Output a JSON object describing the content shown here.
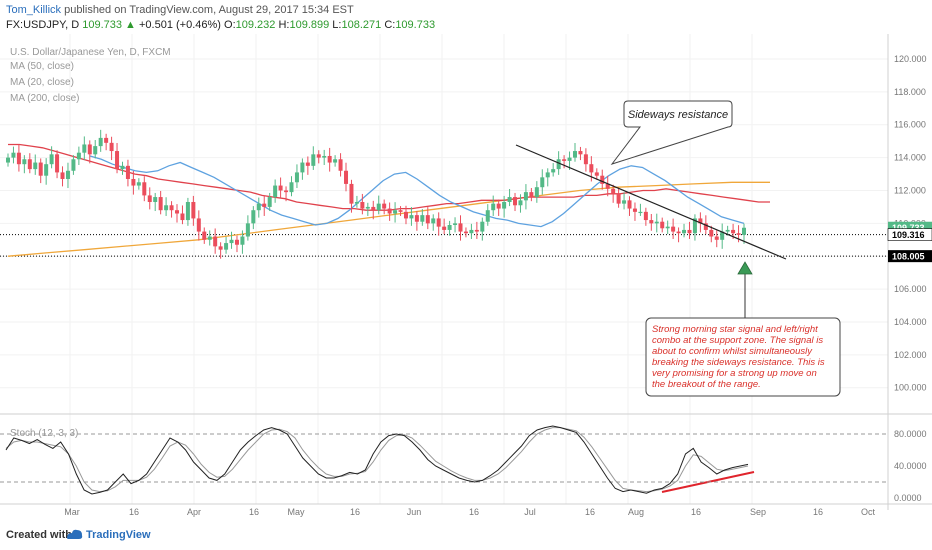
{
  "header": {
    "author": "Tom_Killick",
    "published": "published on TradingView.com, August 29, 2017 15:34 EST",
    "symbol": "FX:USDJPY, D",
    "last": "109.733",
    "change": "+0.501 (+0.46%)",
    "o_label": "O:",
    "o_value": "109.232",
    "h_label": "H:",
    "h_value": "109.899",
    "l_label": "L:",
    "l_value": "108.271",
    "c_label": "C:",
    "c_value": "109.733"
  },
  "legend": {
    "title": "U.S. Dollar/Japanese Yen, D, FXCM",
    "ma50": "MA (50, close)",
    "ma20": "MA (20, close)",
    "ma200": "MA (200, close)"
  },
  "annotations": {
    "resistance_label": "Sideways resistance",
    "note": [
      "Strong morning star signal and left/right",
      "combo at the support zone. The signal is",
      "about to confirm whilst simultaneously",
      "breaking the sideways resistance. This is",
      "very promising for a strong up move on",
      "the breakout of the range."
    ]
  },
  "stoch": {
    "label": "Stoch (12, 3, 3)"
  },
  "footer": {
    "created": "Created with",
    "brand": "TradingView"
  },
  "colors": {
    "bull": "#53b987",
    "bear": "#eb4d5c",
    "ma50": "#e0424c",
    "ma20": "#5ea2e0",
    "ma200": "#f0a73a",
    "note_text": "#d9302a"
  },
  "chart_data": {
    "type": "candlestick",
    "y_ticks": [
      "120.000",
      "118.000",
      "116.000",
      "114.000",
      "112.000",
      "110.000",
      "106.000",
      "104.000",
      "102.000",
      "100.000"
    ],
    "ylim": [
      98.4,
      121.4
    ],
    "price_labels": [
      {
        "value": 109.733,
        "text": "109.733",
        "color": "#53b987"
      },
      {
        "value": 109.316,
        "text": "109.316",
        "color": "#ffffff"
      },
      {
        "value": 108.005,
        "text": "108.005",
        "color": "#000000"
      }
    ],
    "horizontal_levels": [
      109.316,
      108.005
    ],
    "x_ticks": [
      "Mar",
      "16",
      "Apr",
      "16",
      "May",
      "16",
      "Jun",
      "16",
      "Jul",
      "16",
      "Aug",
      "16",
      "Sep",
      "16",
      "Oct"
    ],
    "closes": [
      114.0,
      114.3,
      113.6,
      113.9,
      113.3,
      113.7,
      112.9,
      113.6,
      114.2,
      113.1,
      112.7,
      113.2,
      113.9,
      114.3,
      114.8,
      114.2,
      114.7,
      115.2,
      114.9,
      114.4,
      113.3,
      113.5,
      112.7,
      112.3,
      112.5,
      111.7,
      111.3,
      111.6,
      110.8,
      111.1,
      110.8,
      110.6,
      110.2,
      111.3,
      110.3,
      109.5,
      109.0,
      109.2,
      108.6,
      108.4,
      108.8,
      109.0,
      108.7,
      109.2,
      110.0,
      110.8,
      111.2,
      111.0,
      111.6,
      112.3,
      112.0,
      111.9,
      112.5,
      113.1,
      113.7,
      113.5,
      114.2,
      114.0,
      114.1,
      113.7,
      113.9,
      113.2,
      112.4,
      111.2,
      111.3,
      110.9,
      111.0,
      110.8,
      111.2,
      110.9,
      110.6,
      110.8,
      110.7,
      110.3,
      110.5,
      110.1,
      110.5,
      110.0,
      110.3,
      109.8,
      109.6,
      109.9,
      110.0,
      109.5,
      109.4,
      109.6,
      109.5,
      110.1,
      110.8,
      111.2,
      110.9,
      111.3,
      111.6,
      111.1,
      111.4,
      111.9,
      111.6,
      112.2,
      112.8,
      113.1,
      113.3,
      113.9,
      113.8,
      114.0,
      114.4,
      114.2,
      113.6,
      113.1,
      112.9,
      112.4,
      112.1,
      111.8,
      111.2,
      111.4,
      110.9,
      110.7,
      110.7,
      110.2,
      110.0,
      110.1,
      109.7,
      109.8,
      109.5,
      109.4,
      109.6,
      109.4,
      110.3,
      110.0,
      109.6,
      109.2,
      109.0,
      109.5,
      109.6,
      109.4,
      109.3,
      109.733
    ],
    "ma50": [
      114.8,
      114.8,
      114.7,
      114.6,
      114.4,
      114.2,
      114.0,
      113.8,
      113.6,
      113.4,
      113.2,
      113.0,
      112.9,
      112.7,
      112.6,
      112.5,
      112.4,
      112.3,
      112.2,
      112.1,
      112.0,
      111.9,
      111.7,
      111.6,
      111.5,
      111.3,
      111.2,
      111.1,
      111.0,
      110.9,
      110.9,
      110.8,
      110.8,
      110.8,
      110.9,
      110.9,
      111.0,
      111.1,
      111.2,
      111.2,
      111.3,
      111.4,
      111.4,
      111.4,
      111.5,
      111.6,
      111.6,
      111.6,
      111.6,
      111.6,
      111.7,
      111.7,
      111.8,
      111.8,
      111.9,
      112.0,
      112.0,
      112.1,
      112.0,
      111.9,
      111.8,
      111.7,
      111.6,
      111.5,
      111.4,
      111.3,
      111.3
    ],
    "ma20": [
      114.1,
      113.9,
      113.6,
      113.4,
      113.2,
      113.1,
      113.2,
      113.5,
      113.7,
      113.4,
      113.1,
      112.8,
      112.4,
      112.0,
      111.6,
      111.2,
      110.8,
      110.5,
      110.3,
      110.1,
      109.9,
      110.0,
      110.3,
      110.8,
      111.4,
      112.0,
      112.6,
      113.0,
      113.1,
      112.7,
      112.2,
      111.7,
      111.3,
      111.0,
      110.7,
      110.5,
      110.3,
      110.2,
      110.0,
      109.9,
      109.8,
      110.1,
      110.6,
      111.2,
      111.8,
      112.4,
      112.9,
      113.3,
      113.5,
      113.4,
      113.0,
      112.6,
      112.1,
      111.6,
      111.2,
      110.8,
      110.4,
      110.2,
      110.0
    ],
    "ma200": [
      108.0,
      108.2,
      108.4,
      108.6,
      108.8,
      109.0,
      109.3,
      109.6,
      109.9,
      110.2,
      110.5,
      110.8,
      111.1,
      111.4,
      111.7,
      112.0,
      112.2,
      112.3,
      112.4,
      112.5,
      112.5
    ],
    "stoch_k": [
      60,
      75,
      72,
      68,
      73,
      67,
      62,
      70,
      55,
      30,
      10,
      5,
      7,
      10,
      20,
      30,
      18,
      22,
      30,
      45,
      60,
      75,
      70,
      60,
      45,
      35,
      25,
      22,
      30,
      45,
      60,
      70,
      78,
      85,
      88,
      85,
      80,
      65,
      50,
      40,
      30,
      25,
      25,
      28,
      32,
      30,
      35,
      55,
      70,
      78,
      80,
      78,
      70,
      60,
      48,
      40,
      35,
      30,
      25,
      22,
      20,
      22,
      28,
      35,
      45,
      55,
      65,
      78,
      85,
      88,
      90,
      88,
      85,
      82,
      70,
      55,
      40,
      25,
      12,
      8,
      10,
      8,
      6,
      10,
      12,
      18,
      30,
      55,
      62,
      45,
      38,
      30,
      35,
      38,
      40,
      42
    ],
    "stoch_d": [
      62,
      70,
      72,
      70,
      70,
      68,
      66,
      64,
      55,
      40,
      20,
      10,
      8,
      9,
      14,
      22,
      22,
      22,
      26,
      36,
      50,
      65,
      70,
      66,
      55,
      42,
      32,
      26,
      27,
      36,
      48,
      60,
      70,
      80,
      85,
      86,
      83,
      75,
      60,
      48,
      38,
      30,
      27,
      27,
      30,
      31,
      33,
      45,
      60,
      72,
      78,
      79,
      75,
      66,
      56,
      46,
      40,
      34,
      29,
      25,
      22,
      22,
      25,
      30,
      38,
      48,
      58,
      70,
      80,
      85,
      88,
      88,
      86,
      84,
      76,
      64,
      50,
      36,
      22,
      12,
      10,
      9,
      8,
      9,
      11,
      15,
      22,
      40,
      54,
      52,
      44,
      36,
      34,
      36,
      38,
      40
    ],
    "stoch_ticks": [
      "80.0000",
      "40.0000",
      "0.0000"
    ]
  }
}
